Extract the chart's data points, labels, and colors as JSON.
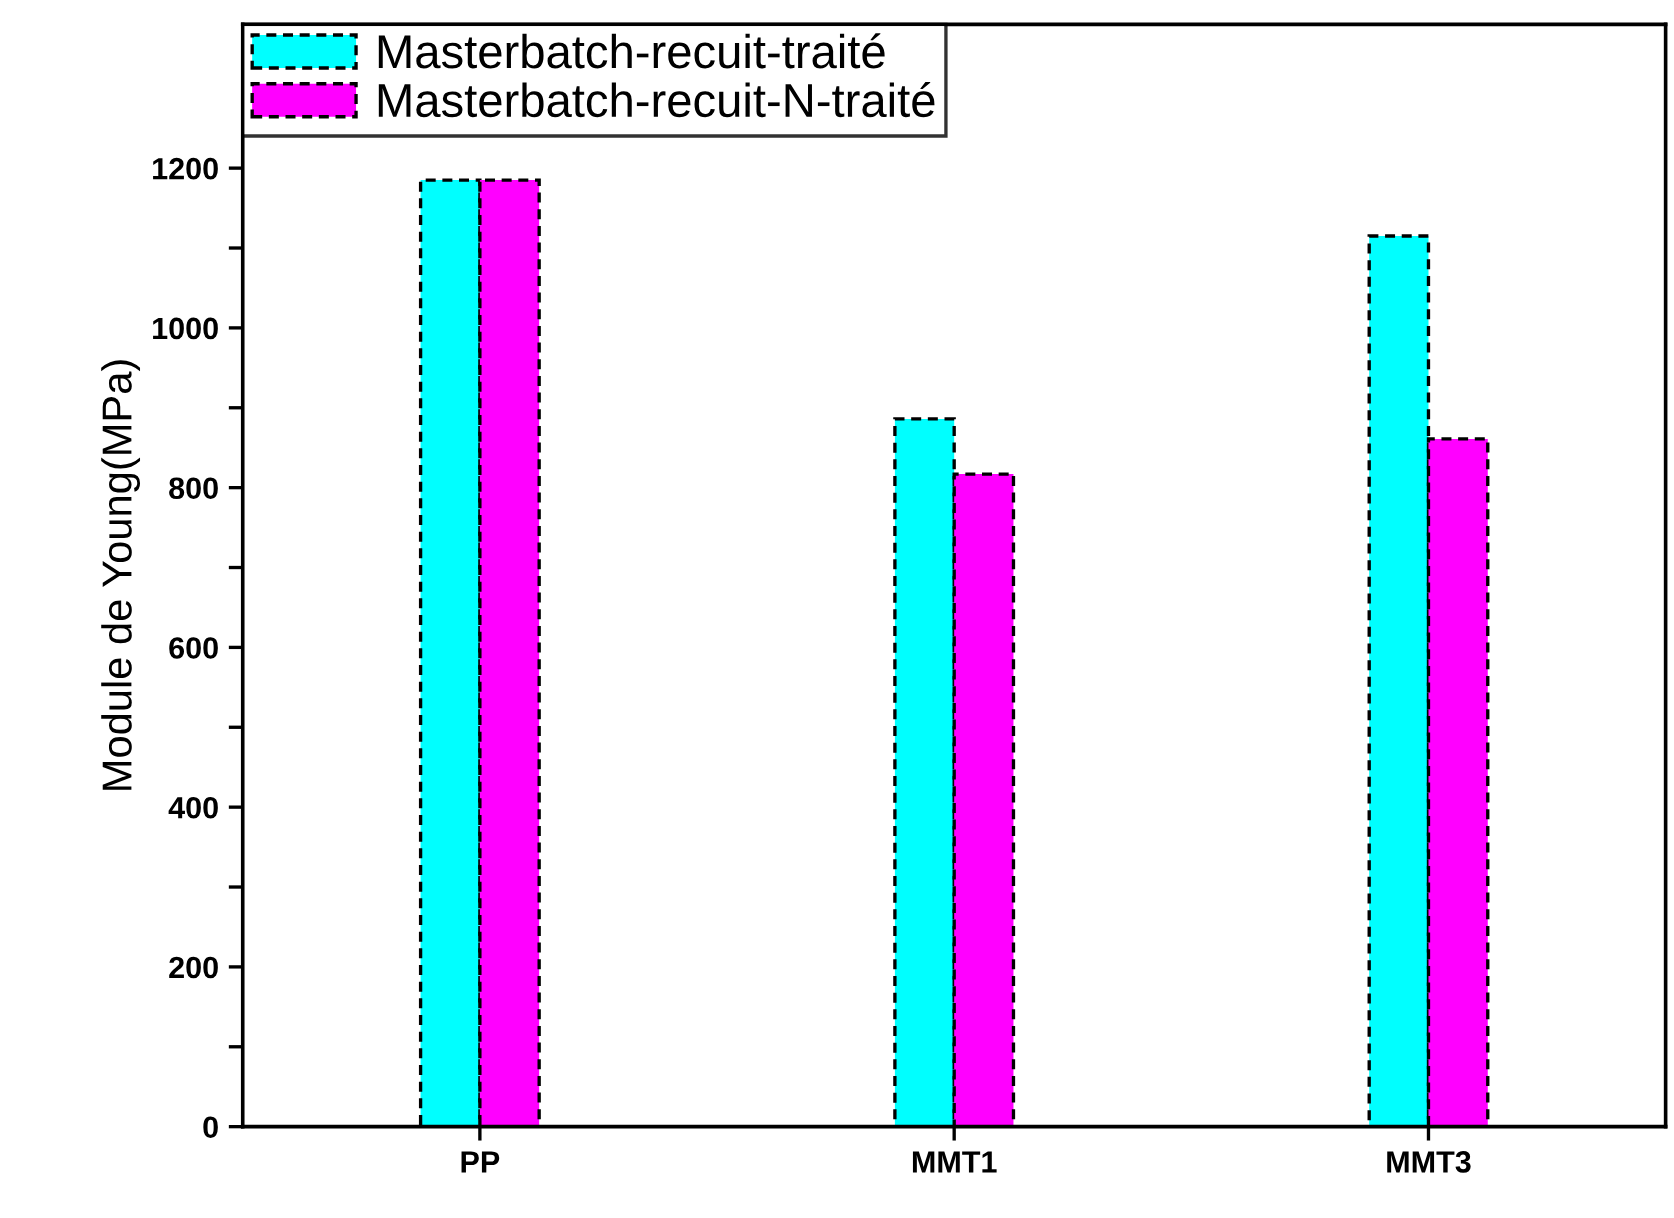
{
  "chart_data": {
    "type": "bar",
    "ylabel": "Module de Young(MPa)",
    "categories": [
      "PP",
      "MMT1",
      "MMT3"
    ],
    "series": [
      {
        "name": "Masterbatch-recuit-traité",
        "color": "#00ffff",
        "values": [
          1185,
          886,
          1115
        ]
      },
      {
        "name": "Masterbatch-recuit-N-traité",
        "color": "#ff00ff",
        "values": [
          1185,
          817,
          861
        ]
      }
    ],
    "ylim": [
      0,
      1380
    ],
    "yticks": [
      0,
      {
        "value": 100,
        "label": null
      },
      200,
      {
        "value": 300,
        "label": null
      },
      400,
      {
        "value": 500,
        "label": null
      },
      600,
      {
        "value": 700,
        "label": null
      },
      800,
      {
        "value": 900,
        "label": null
      },
      1000,
      {
        "value": 1100,
        "label": null
      },
      1200
    ],
    "grid": false,
    "legend": "top left",
    "line_style": "dashed"
  }
}
